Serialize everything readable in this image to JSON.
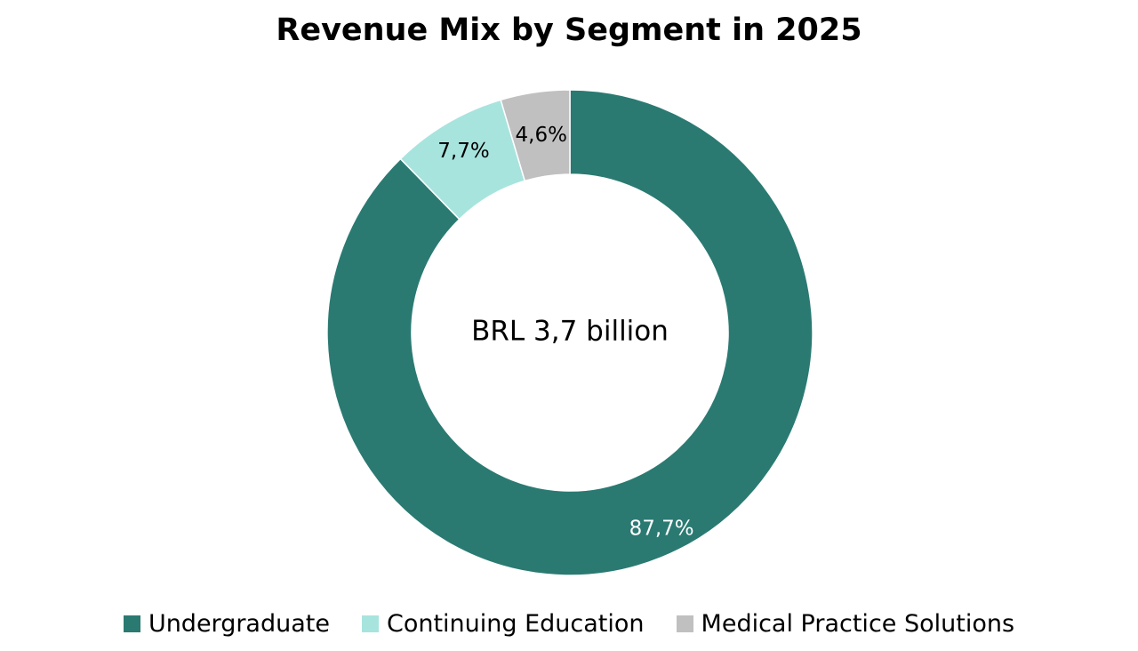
{
  "chart_data": {
    "type": "pie",
    "title": "Revenue Mix by Segment in 2025",
    "center_label": "BRL 3,7 billion",
    "categories": [
      "Undergraduate",
      "Continuing Education",
      "Medical Practice Solutions"
    ],
    "values": [
      87.7,
      7.7,
      4.6
    ],
    "data_labels": [
      "87,7%",
      "7,7%",
      "4,6%"
    ],
    "colors": [
      "#2a7a72",
      "#a8e4de",
      "#c0c0c0"
    ],
    "label_colors": [
      "#ffffff",
      "#000000",
      "#000000"
    ],
    "donut": true,
    "legend_position": "bottom"
  }
}
